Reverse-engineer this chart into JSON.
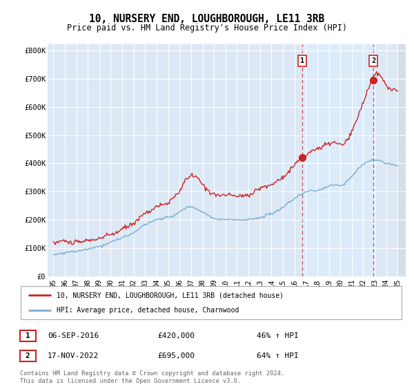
{
  "title": "10, NURSERY END, LOUGHBOROUGH, LE11 3RB",
  "subtitle": "Price paid vs. HM Land Registry's House Price Index (HPI)",
  "title_fontsize": 10.5,
  "subtitle_fontsize": 8.5,
  "background_color": "#ffffff",
  "plot_bg_color": "#dce8f5",
  "plot_bg_color_right": "#e8eeff",
  "grid_color": "#ffffff",
  "ylim": [
    0,
    820000
  ],
  "xlim_start": 1994.5,
  "xlim_end": 2025.7,
  "yticks": [
    0,
    100000,
    200000,
    300000,
    400000,
    500000,
    600000,
    700000,
    800000
  ],
  "ytick_labels": [
    "£0",
    "£100K",
    "£200K",
    "£300K",
    "£400K",
    "£500K",
    "£600K",
    "£700K",
    "£800K"
  ],
  "xtick_years": [
    1995,
    1996,
    1997,
    1998,
    1999,
    2000,
    2001,
    2002,
    2003,
    2004,
    2005,
    2006,
    2007,
    2008,
    2009,
    2010,
    2011,
    2012,
    2013,
    2014,
    2015,
    2016,
    2017,
    2018,
    2019,
    2020,
    2021,
    2022,
    2023,
    2024,
    2025
  ],
  "red_line_color": "#cc2222",
  "blue_line_color": "#7aadd4",
  "vline_color": "#cc2222",
  "marker1_x": 2016.67,
  "marker1_y": 420000,
  "marker1_label": "1",
  "marker2_x": 2022.88,
  "marker2_y": 695000,
  "marker2_label": "2",
  "sale1_date": "06-SEP-2016",
  "sale1_price": "£420,000",
  "sale1_hpi": "46% ↑ HPI",
  "sale2_date": "17-NOV-2022",
  "sale2_price": "£695,000",
  "sale2_hpi": "64% ↑ HPI",
  "legend_label_red": "10, NURSERY END, LOUGHBOROUGH, LE11 3RB (detached house)",
  "legend_label_blue": "HPI: Average price, detached house, Charnwood",
  "copyright_text": "Contains HM Land Registry data © Crown copyright and database right 2024.\nThis data is licensed under the Open Government Licence v3.0."
}
